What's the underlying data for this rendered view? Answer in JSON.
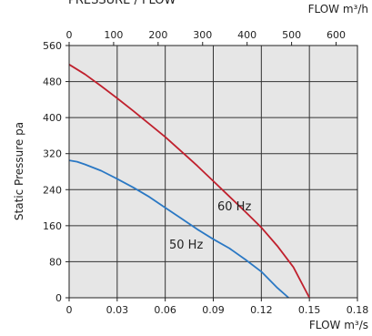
{
  "page": {
    "title": "PRESSURE / FLOW"
  },
  "chart_data": {
    "type": "line",
    "title": "PRESSURE / FLOW",
    "xlabel": "FLOW m³/s",
    "x2label": "FLOW m³/h",
    "ylabel": "Static Pressure pa",
    "xlim": [
      0,
      0.18
    ],
    "x2lim": [
      0,
      648
    ],
    "ylim": [
      0,
      560
    ],
    "xticks": [
      0,
      0.03,
      0.06,
      0.09,
      0.12,
      0.15,
      0.18
    ],
    "xtick_labels": [
      "0",
      "0.03",
      "0.06",
      "0.09",
      "0.12",
      "0.15",
      "0.18"
    ],
    "x2ticks": [
      0,
      100,
      200,
      300,
      400,
      500,
      600
    ],
    "x2tick_labels": [
      "0",
      "100",
      "200",
      "300",
      "400",
      "500",
      "600"
    ],
    "yticks": [
      0,
      80,
      160,
      240,
      320,
      400,
      480,
      560
    ],
    "ytick_labels": [
      "0",
      "80",
      "160",
      "240",
      "320",
      "400",
      "480",
      "560"
    ],
    "grid": true,
    "plot_background": "#e6e6e6",
    "series": [
      {
        "name": "60 Hz",
        "color": "#c0202d",
        "x": [
          0,
          0.01,
          0.02,
          0.03,
          0.04,
          0.05,
          0.06,
          0.07,
          0.08,
          0.09,
          0.1,
          0.11,
          0.12,
          0.13,
          0.14,
          0.15
        ],
        "y": [
          518,
          496,
          470,
          443,
          415,
          386,
          357,
          325,
          293,
          259,
          225,
          191,
          156,
          115,
          68,
          0
        ]
      },
      {
        "name": "50 Hz",
        "color": "#2a78c4",
        "x": [
          0,
          0.005,
          0.01,
          0.02,
          0.03,
          0.04,
          0.05,
          0.06,
          0.07,
          0.08,
          0.09,
          0.1,
          0.11,
          0.12,
          0.13,
          0.137
        ],
        "y": [
          305,
          302,
          296,
          282,
          264,
          245,
          224,
          200,
          176,
          152,
          130,
          110,
          85,
          58,
          22,
          0
        ]
      }
    ]
  }
}
